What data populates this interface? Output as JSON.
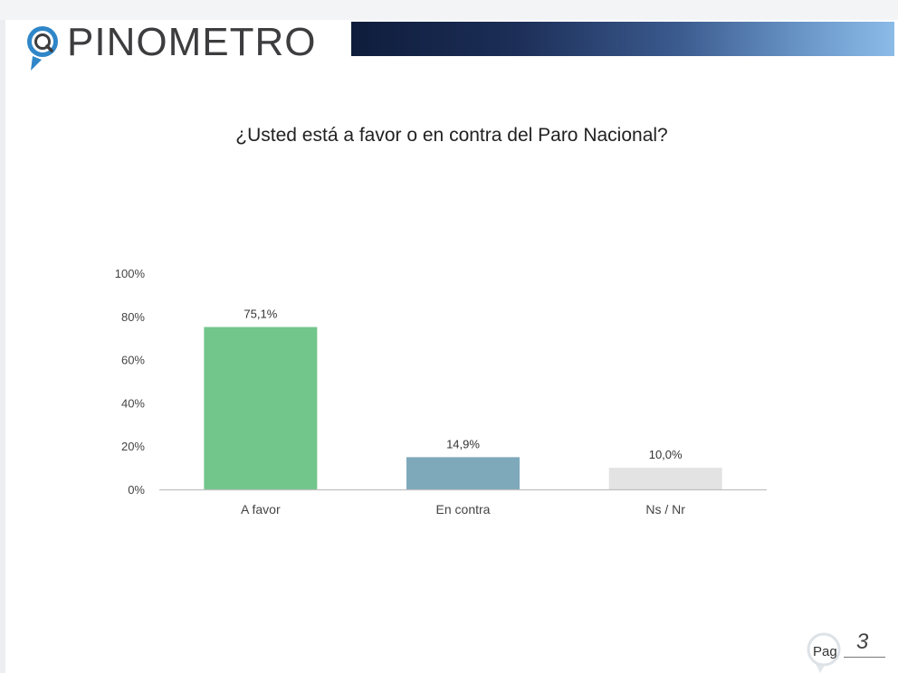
{
  "brand": {
    "name": "PINOMETRO",
    "logo_icon": "magnifier-pin-icon",
    "colors": {
      "navy": "#1c2e57",
      "light_blue": "#8cbbe8"
    }
  },
  "chart_data": {
    "type": "bar",
    "title": "¿Usted está a favor o en contra del Paro Nacional?",
    "categories": [
      "A favor",
      "En contra",
      "Ns / Nr"
    ],
    "values": [
      75.1,
      14.9,
      10.0
    ],
    "value_labels": [
      "75,1%",
      "14,9%",
      "10,0%"
    ],
    "colors": [
      "#72c68b",
      "#7ea9bb",
      "#e3e3e3"
    ],
    "y_ticks": [
      "0%",
      "20%",
      "40%",
      "60%",
      "80%",
      "100%"
    ],
    "ylim": [
      0,
      100
    ],
    "grid": false,
    "legend": "none"
  },
  "footer": {
    "page_label": "Pag",
    "page_number": "3"
  }
}
